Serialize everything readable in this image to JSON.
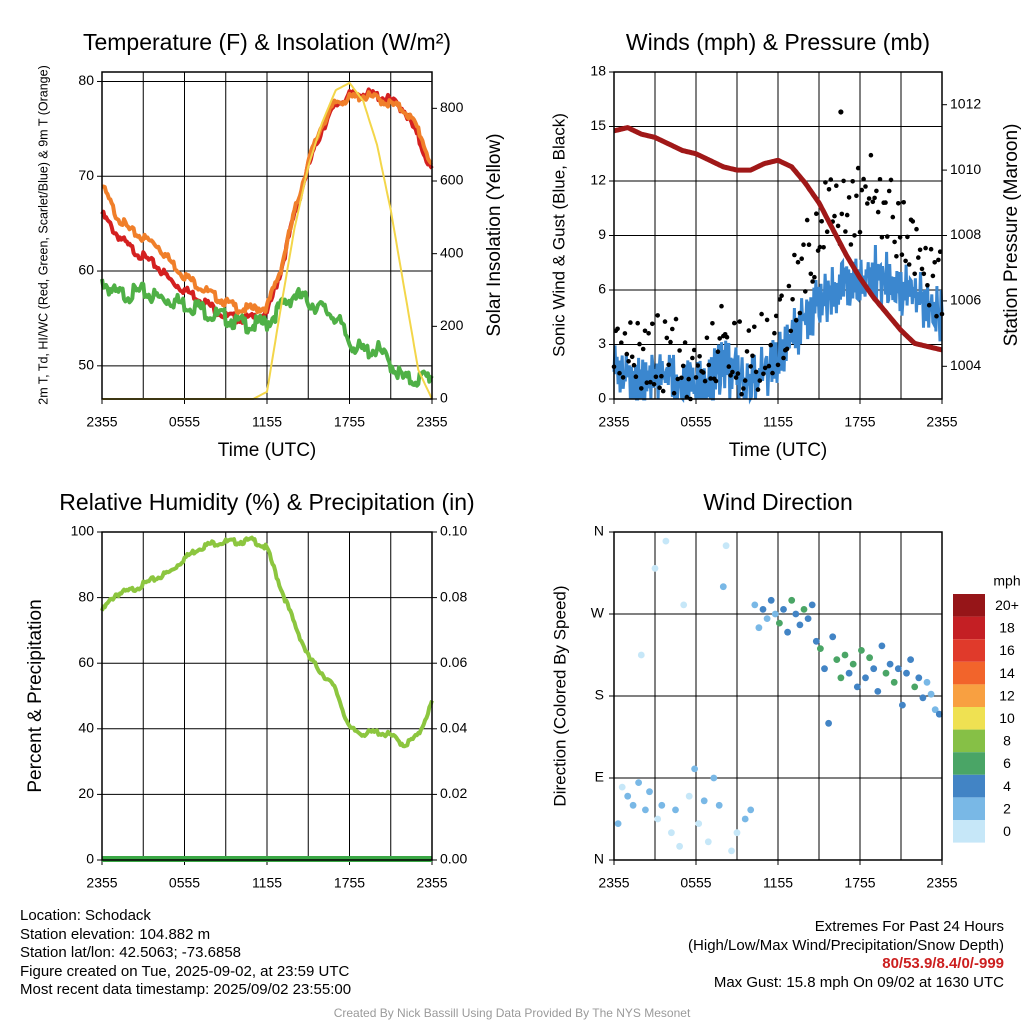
{
  "chart_data": [
    {
      "type": "line",
      "title": "Temperature (F) & Insolation (W/m²)",
      "xlabel": "Time (UTC)",
      "ylabel": "2m T, Td, HI/WC (Red, Green, Scarlet/Blue) & 9m T (Orange)",
      "ylabel2": "Solar Insolation (Yellow)",
      "x_ticks": [
        "2355",
        "0555",
        "1155",
        "1755",
        "2355"
      ],
      "ylim": [
        46.5,
        81
      ],
      "y_ticks": [
        50,
        60,
        70,
        80
      ],
      "ylim2": [
        0,
        900
      ],
      "y2_ticks": [
        0,
        200,
        400,
        600,
        800
      ],
      "hours": [
        0,
        1,
        2,
        3,
        4,
        5,
        6,
        7,
        8,
        9,
        10,
        11,
        12,
        13,
        14,
        15,
        16,
        17,
        18,
        19,
        20,
        21,
        22,
        23,
        24
      ],
      "series": [
        {
          "color": "#d42020",
          "values": [
            66,
            64,
            62.5,
            61.5,
            60.5,
            59,
            58,
            57.2,
            56.2,
            55.2,
            55,
            55,
            55.5,
            60,
            66,
            71,
            75,
            77.5,
            78.5,
            78.8,
            78.5,
            78,
            77,
            74,
            70.5
          ]
        },
        {
          "color": "#4fb046",
          "values": [
            59,
            57.5,
            57.6,
            57.8,
            57.2,
            57,
            56.5,
            56.2,
            55.4,
            55.1,
            54.5,
            54.3,
            54.5,
            56.2,
            57.5,
            56.8,
            56,
            55.2,
            52.5,
            51.5,
            51.8,
            50.2,
            48.5,
            48.6,
            49
          ]
        },
        {
          "color": "#f07f2a",
          "values": [
            69,
            66,
            64.3,
            63.5,
            62.8,
            61,
            59.5,
            58.5,
            57.5,
            56.7,
            56,
            56,
            56.2,
            60.2,
            66.2,
            71.5,
            75.5,
            77.8,
            78.2,
            78.5,
            78.2,
            77.6,
            77,
            75,
            71
          ]
        },
        {
          "color": "#f3d64a",
          "values": [
            0,
            0,
            0,
            0,
            0,
            0,
            0,
            0,
            0,
            0,
            0,
            0,
            20,
            250,
            470,
            640,
            760,
            850,
            870,
            820,
            700,
            520,
            300,
            80,
            0
          ]
        }
      ]
    },
    {
      "type": "scatter",
      "title": "Winds (mph) & Pressure (mb)",
      "xlabel": "Time (UTC)",
      "ylabel": "Sonic Wind & Gust (Blue, Black)",
      "ylabel2": "Station Pressure (Maroon)",
      "x_ticks": [
        "2355",
        "0555",
        "1155",
        "1755",
        "2355"
      ],
      "ylim": [
        0,
        18
      ],
      "y_ticks": [
        0,
        3,
        6,
        9,
        12,
        15,
        18
      ],
      "ylim2": [
        1003,
        1013
      ],
      "y2_ticks": [
        1004,
        1006,
        1008,
        1010,
        1012
      ],
      "hours": [
        0,
        1,
        2,
        3,
        4,
        5,
        6,
        7,
        8,
        9,
        10,
        11,
        12,
        13,
        14,
        15,
        16,
        17,
        18,
        19,
        20,
        21,
        22,
        23,
        24
      ],
      "series": [
        {
          "name": "Sonic Wind",
          "color": "#3b87cf",
          "values": [
            1.5,
            1.2,
            0.8,
            1.0,
            1.5,
            1.0,
            0.5,
            1.0,
            1.8,
            1.2,
            1.0,
            1.5,
            2.0,
            3.5,
            4.5,
            5.5,
            6.0,
            6.5,
            6.5,
            7.0,
            6.5,
            6.0,
            6.0,
            5.0,
            4.5
          ]
        },
        {
          "name": "Gust",
          "color": "#000000",
          "values": [
            3.0,
            2.5,
            2.0,
            2.3,
            2.8,
            2.0,
            1.5,
            2.2,
            3.5,
            2.5,
            2.2,
            2.8,
            3.5,
            5.5,
            7.5,
            9.5,
            10.0,
            10.5,
            11.0,
            11.5,
            10.5,
            9.0,
            8.0,
            7.0,
            6.5
          ]
        },
        {
          "name": "Station Pressure",
          "color": "#a01818",
          "values": [
            1011.2,
            1011.3,
            1011.1,
            1011.0,
            1010.8,
            1010.6,
            1010.5,
            1010.3,
            1010.1,
            1010.0,
            1010.0,
            1010.2,
            1010.3,
            1010.1,
            1009.6,
            1009.0,
            1008.2,
            1007.4,
            1006.7,
            1006.1,
            1005.6,
            1005.1,
            1004.7,
            1004.6,
            1004.5
          ]
        }
      ],
      "gust_max_point": {
        "hour": 16.6,
        "value": 15.8
      }
    },
    {
      "type": "line",
      "title": "Relative Humidity (%) & Precipitation (in)",
      "xlabel": "",
      "ylabel": "Percent & Precipitation",
      "x_ticks": [
        "2355",
        "0555",
        "1155",
        "1755",
        "2355"
      ],
      "ylim": [
        0,
        100
      ],
      "y_ticks": [
        0,
        20,
        40,
        60,
        80,
        100
      ],
      "ylim2": [
        0,
        0.1
      ],
      "y2_ticks": [
        "0.00",
        "0.02",
        "0.04",
        "0.06",
        "0.08",
        "0.10"
      ],
      "hours": [
        0,
        1,
        2,
        3,
        4,
        5,
        6,
        7,
        8,
        9,
        10,
        11,
        12,
        13,
        14,
        15,
        16,
        17,
        18,
        19,
        20,
        21,
        22,
        23,
        24
      ],
      "series": [
        {
          "color": "#8cc63f",
          "values": [
            76,
            81,
            82,
            84,
            86,
            88,
            92,
            95,
            96.5,
            97,
            97,
            97.5,
            95,
            83,
            72,
            62,
            57,
            52,
            40,
            38.5,
            39,
            38,
            35,
            38,
            48
          ]
        },
        {
          "color": "#3aa845",
          "values": [
            0,
            0,
            0,
            0,
            0,
            0,
            0,
            0,
            0,
            0,
            0,
            0,
            0,
            0,
            0,
            0,
            0,
            0,
            0,
            0,
            0,
            0,
            0,
            0,
            0
          ]
        }
      ]
    },
    {
      "type": "scatter",
      "title": "Wind Direction",
      "xlabel": "",
      "ylabel": "Direction (Colored By Speed)",
      "x_ticks": [
        "2355",
        "0555",
        "1155",
        "1755",
        "2355"
      ],
      "y_ticks": [
        "N",
        "E",
        "S",
        "W",
        "N"
      ],
      "ylim": [
        0,
        360
      ],
      "colorbar": {
        "title": "mph",
        "labels": [
          "20+",
          "18",
          "16",
          "14",
          "12",
          "10",
          "8",
          "6",
          "4",
          "2",
          "0"
        ],
        "colors": [
          "#961518",
          "#c41f24",
          "#e03a2b",
          "#f2642b",
          "#f8a041",
          "#efe152",
          "#86c046",
          "#4aa566",
          "#4284c5",
          "#79b8e6",
          "#c6e7f8"
        ]
      },
      "points": [
        {
          "hour": 0.3,
          "deg": 40,
          "speed": 2
        },
        {
          "hour": 0.6,
          "deg": 80,
          "speed": 1
        },
        {
          "hour": 1.0,
          "deg": 70,
          "speed": 2
        },
        {
          "hour": 1.4,
          "deg": 60,
          "speed": 3
        },
        {
          "hour": 1.8,
          "deg": 85,
          "speed": 2
        },
        {
          "hour": 2.0,
          "deg": 225,
          "speed": 1
        },
        {
          "hour": 2.3,
          "deg": 55,
          "speed": 2
        },
        {
          "hour": 2.6,
          "deg": 75,
          "speed": 3
        },
        {
          "hour": 3.0,
          "deg": 320,
          "speed": 1
        },
        {
          "hour": 3.2,
          "deg": 45,
          "speed": 1
        },
        {
          "hour": 3.5,
          "deg": 60,
          "speed": 2
        },
        {
          "hour": 3.8,
          "deg": 350,
          "speed": 1
        },
        {
          "hour": 4.2,
          "deg": 30,
          "speed": 0
        },
        {
          "hour": 4.5,
          "deg": 55,
          "speed": 2
        },
        {
          "hour": 4.8,
          "deg": 15,
          "speed": 1
        },
        {
          "hour": 5.1,
          "deg": 280,
          "speed": 1
        },
        {
          "hour": 5.5,
          "deg": 70,
          "speed": 1
        },
        {
          "hour": 5.9,
          "deg": 100,
          "speed": 3
        },
        {
          "hour": 6.2,
          "deg": 40,
          "speed": 1
        },
        {
          "hour": 6.6,
          "deg": 65,
          "speed": 2
        },
        {
          "hour": 6.9,
          "deg": 20,
          "speed": 1
        },
        {
          "hour": 7.3,
          "deg": 90,
          "speed": 2
        },
        {
          "hour": 7.7,
          "deg": 60,
          "speed": 3
        },
        {
          "hour": 8.0,
          "deg": 300,
          "speed": 3
        },
        {
          "hour": 8.2,
          "deg": 345,
          "speed": 0
        },
        {
          "hour": 8.6,
          "deg": 10,
          "speed": 0
        },
        {
          "hour": 9.0,
          "deg": 30,
          "speed": 0
        },
        {
          "hour": 9.6,
          "deg": 45,
          "speed": 2
        },
        {
          "hour": 10.0,
          "deg": 55,
          "speed": 3
        },
        {
          "hour": 10.3,
          "deg": 280,
          "speed": 3
        },
        {
          "hour": 10.6,
          "deg": 255,
          "speed": 2
        },
        {
          "hour": 10.9,
          "deg": 275,
          "speed": 4
        },
        {
          "hour": 11.2,
          "deg": 265,
          "speed": 3
        },
        {
          "hour": 11.5,
          "deg": 285,
          "speed": 5
        },
        {
          "hour": 11.8,
          "deg": 270,
          "speed": 3
        },
        {
          "hour": 12.1,
          "deg": 260,
          "speed": 6
        },
        {
          "hour": 12.4,
          "deg": 275,
          "speed": 4
        },
        {
          "hour": 12.7,
          "deg": 250,
          "speed": 4
        },
        {
          "hour": 13.0,
          "deg": 285,
          "speed": 6
        },
        {
          "hour": 13.3,
          "deg": 270,
          "speed": 4
        },
        {
          "hour": 13.6,
          "deg": 258,
          "speed": 4
        },
        {
          "hour": 13.9,
          "deg": 275,
          "speed": 7
        },
        {
          "hour": 14.2,
          "deg": 265,
          "speed": 5
        },
        {
          "hour": 14.5,
          "deg": 280,
          "speed": 4
        },
        {
          "hour": 14.8,
          "deg": 240,
          "speed": 4
        },
        {
          "hour": 15.1,
          "deg": 232,
          "speed": 7
        },
        {
          "hour": 15.4,
          "deg": 210,
          "speed": 4
        },
        {
          "hour": 15.7,
          "deg": 150,
          "speed": 4
        },
        {
          "hour": 16.0,
          "deg": 245,
          "speed": 5
        },
        {
          "hour": 16.3,
          "deg": 220,
          "speed": 6
        },
        {
          "hour": 16.6,
          "deg": 200,
          "speed": 6
        },
        {
          "hour": 16.9,
          "deg": 225,
          "speed": 7
        },
        {
          "hour": 17.2,
          "deg": 205,
          "speed": 4
        },
        {
          "hour": 17.5,
          "deg": 215,
          "speed": 6
        },
        {
          "hour": 17.8,
          "deg": 190,
          "speed": 5
        },
        {
          "hour": 18.1,
          "deg": 230,
          "speed": 7
        },
        {
          "hour": 18.4,
          "deg": 200,
          "speed": 4
        },
        {
          "hour": 18.7,
          "deg": 222,
          "speed": 6
        },
        {
          "hour": 19.0,
          "deg": 210,
          "speed": 5
        },
        {
          "hour": 19.3,
          "deg": 185,
          "speed": 4
        },
        {
          "hour": 19.6,
          "deg": 235,
          "speed": 4
        },
        {
          "hour": 19.9,
          "deg": 205,
          "speed": 6
        },
        {
          "hour": 20.2,
          "deg": 215,
          "speed": 4
        },
        {
          "hour": 20.5,
          "deg": 195,
          "speed": 6
        },
        {
          "hour": 20.8,
          "deg": 210,
          "speed": 4
        },
        {
          "hour": 21.1,
          "deg": 170,
          "speed": 4
        },
        {
          "hour": 21.4,
          "deg": 205,
          "speed": 5
        },
        {
          "hour": 21.7,
          "deg": 220,
          "speed": 4
        },
        {
          "hour": 22.0,
          "deg": 190,
          "speed": 7
        },
        {
          "hour": 22.3,
          "deg": 200,
          "speed": 4
        },
        {
          "hour": 22.6,
          "deg": 178,
          "speed": 4
        },
        {
          "hour": 22.9,
          "deg": 195,
          "speed": 3
        },
        {
          "hour": 23.2,
          "deg": 182,
          "speed": 3
        },
        {
          "hour": 23.5,
          "deg": 165,
          "speed": 2
        },
        {
          "hour": 23.8,
          "deg": 160,
          "speed": 4
        }
      ]
    }
  ],
  "info": {
    "location": "Location: Schodack",
    "elevation": "Station elevation: 104.882 m",
    "latlon": "Station lat/lon: 42.5063; -73.6858",
    "created": "Figure created on Tue, 2025-09-02, at 23:59 UTC",
    "recent": "Most recent data timestamp: 2025/09/02 23:55:00"
  },
  "extremes": {
    "title": "Extremes For Past 24 Hours",
    "legend": "(High/Low/Max Wind/Precipitation/Snow Depth)",
    "values": "80/53.9/8.4/0/-999",
    "gust": "Max Gust: 15.8 mph On 09/02 at 1630 UTC"
  },
  "credit": "Created By Nick Bassill Using Data Provided By The NYS Mesonet"
}
